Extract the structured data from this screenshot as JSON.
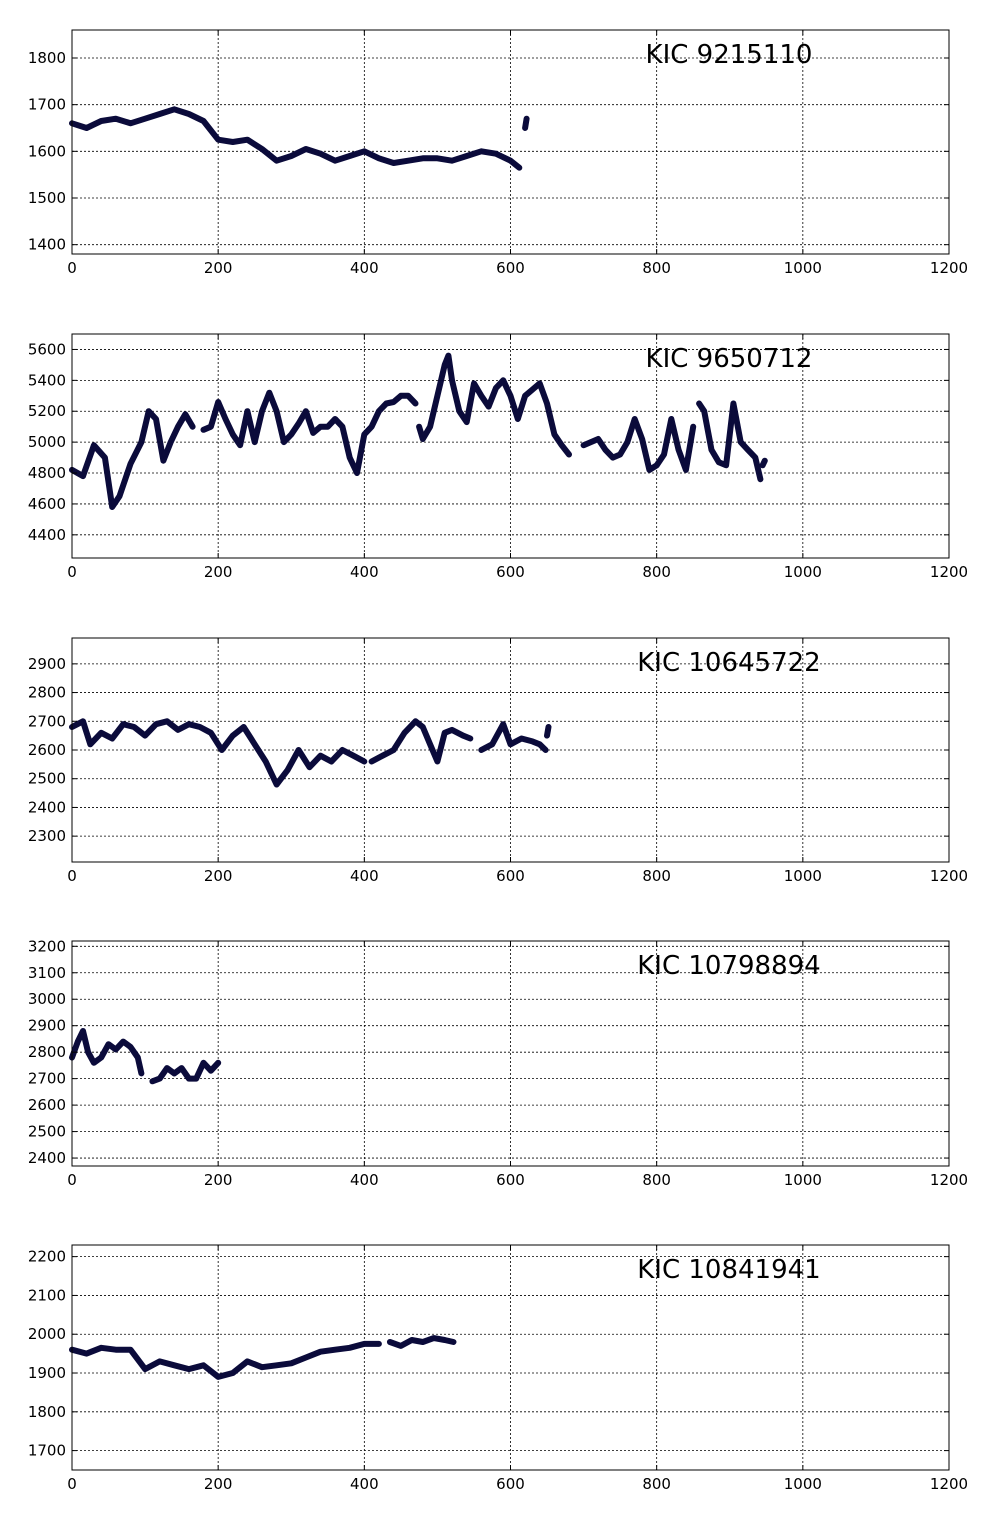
{
  "colors": {
    "series": "#0b0b3b",
    "background": "#ffffff",
    "axes": "#000000"
  },
  "chart_data": [
    {
      "type": "line",
      "title": "KIC 9215110",
      "xlim": [
        0,
        1200
      ],
      "ylim": [
        1380,
        1860
      ],
      "xticks": [
        0,
        200,
        400,
        600,
        800,
        1000,
        1200
      ],
      "yticks": [
        1400,
        1500,
        1600,
        1700,
        1800
      ],
      "grid": true,
      "segments": [
        {
          "x": [
            0,
            20,
            40,
            60,
            80,
            100,
            120,
            140,
            160,
            180,
            200,
            220,
            240,
            260,
            280,
            300,
            320,
            340,
            360,
            380,
            400,
            420,
            440,
            460,
            480,
            500,
            520,
            540,
            560,
            580,
            600,
            612
          ],
          "y": [
            1660,
            1650,
            1665,
            1670,
            1660,
            1670,
            1680,
            1690,
            1680,
            1665,
            1625,
            1620,
            1625,
            1605,
            1580,
            1590,
            1605,
            1595,
            1580,
            1590,
            1600,
            1585,
            1575,
            1580,
            1585,
            1585,
            1580,
            1590,
            1600,
            1595,
            1580,
            1565
          ]
        },
        {
          "x": [
            620,
            622
          ],
          "y": [
            1650,
            1670
          ]
        }
      ]
    },
    {
      "type": "line",
      "title": "KIC 9650712",
      "xlim": [
        0,
        1200
      ],
      "ylim": [
        4250,
        5700
      ],
      "xticks": [
        0,
        200,
        400,
        600,
        800,
        1000,
        1200
      ],
      "yticks": [
        4400,
        4600,
        4800,
        5000,
        5200,
        5400,
        5600
      ],
      "grid": true,
      "segments": [
        {
          "x": [
            0,
            15,
            30,
            45,
            55,
            65,
            80,
            95,
            105,
            115,
            125,
            135,
            145,
            155,
            165
          ],
          "y": [
            4820,
            4780,
            4980,
            4900,
            4580,
            4650,
            4860,
            5000,
            5200,
            5150,
            4880,
            5000,
            5100,
            5180,
            5100
          ]
        },
        {
          "x": [
            180,
            190,
            200,
            210,
            220,
            230,
            240,
            250,
            260,
            270,
            280,
            290,
            300,
            310,
            320,
            330,
            340,
            350,
            360,
            370,
            380,
            390,
            400,
            410,
            420,
            430,
            440,
            450,
            460,
            470
          ],
          "y": [
            5080,
            5100,
            5260,
            5150,
            5050,
            4980,
            5200,
            5000,
            5200,
            5320,
            5200,
            5000,
            5050,
            5120,
            5200,
            5060,
            5100,
            5100,
            5150,
            5100,
            4900,
            4800,
            5050,
            5100,
            5200,
            5250,
            5260,
            5300,
            5300,
            5250
          ]
        },
        {
          "x": [
            475,
            480,
            490,
            500,
            510,
            515,
            520,
            530,
            540,
            550,
            560,
            570,
            580,
            590,
            600,
            610,
            620,
            630,
            640,
            650,
            660,
            670,
            680
          ],
          "y": [
            5100,
            5020,
            5100,
            5300,
            5500,
            5560,
            5400,
            5200,
            5130,
            5380,
            5300,
            5230,
            5350,
            5400,
            5300,
            5150,
            5300,
            5340,
            5380,
            5250,
            5050,
            4980,
            4920
          ]
        },
        {
          "x": [
            700,
            720,
            730,
            740,
            750,
            760,
            770,
            780,
            790,
            800,
            810,
            820,
            830,
            840,
            850
          ],
          "y": [
            4980,
            5020,
            4950,
            4900,
            4920,
            5000,
            5150,
            5020,
            4820,
            4850,
            4920,
            5150,
            4950,
            4820,
            5100
          ]
        },
        {
          "x": [
            858,
            865,
            875,
            885,
            895,
            905,
            915,
            925,
            935,
            942
          ],
          "y": [
            5250,
            5200,
            4950,
            4870,
            4850,
            5250,
            5000,
            4950,
            4900,
            4760
          ]
        },
        {
          "x": [
            945,
            948
          ],
          "y": [
            4850,
            4880
          ]
        }
      ]
    },
    {
      "type": "line",
      "title": "KIC 10645722",
      "xlim": [
        0,
        1200
      ],
      "ylim": [
        2210,
        2990
      ],
      "xticks": [
        0,
        200,
        400,
        600,
        800,
        1000,
        1200
      ],
      "yticks": [
        2300,
        2400,
        2500,
        2600,
        2700,
        2800,
        2900
      ],
      "grid": true,
      "segments": [
        {
          "x": [
            0,
            15,
            25,
            40,
            55,
            70,
            85,
            100,
            115,
            130,
            145,
            160,
            175,
            190,
            205,
            220,
            235,
            250,
            265,
            280,
            295,
            310,
            325,
            340,
            355,
            370,
            385,
            400
          ],
          "y": [
            2680,
            2700,
            2620,
            2660,
            2640,
            2690,
            2680,
            2650,
            2690,
            2700,
            2670,
            2690,
            2680,
            2660,
            2600,
            2650,
            2680,
            2620,
            2560,
            2480,
            2530,
            2600,
            2540,
            2580,
            2560,
            2600,
            2580,
            2560
          ]
        },
        {
          "x": [
            410,
            425,
            440,
            455,
            470,
            480,
            490,
            500,
            510,
            520,
            535,
            545
          ],
          "y": [
            2560,
            2580,
            2600,
            2660,
            2700,
            2680,
            2620,
            2560,
            2660,
            2670,
            2650,
            2640
          ]
        },
        {
          "x": [
            560,
            575,
            590,
            600,
            615,
            630,
            640,
            648
          ],
          "y": [
            2600,
            2620,
            2690,
            2620,
            2640,
            2630,
            2620,
            2600
          ]
        },
        {
          "x": [
            650,
            652
          ],
          "y": [
            2650,
            2680
          ]
        }
      ]
    },
    {
      "type": "line",
      "title": "KIC 10798894",
      "xlim": [
        0,
        1200
      ],
      "ylim": [
        2370,
        3220
      ],
      "xticks": [
        0,
        200,
        400,
        600,
        800,
        1000,
        1200
      ],
      "yticks": [
        2400,
        2500,
        2600,
        2700,
        2800,
        2900,
        3000,
        3100,
        3200
      ],
      "grid": true,
      "segments": [
        {
          "x": [
            0,
            8,
            15,
            22,
            30,
            40,
            50,
            60,
            70,
            80,
            90,
            95
          ],
          "y": [
            2780,
            2840,
            2880,
            2800,
            2760,
            2780,
            2830,
            2810,
            2840,
            2820,
            2780,
            2720
          ]
        },
        {
          "x": [
            110,
            120,
            130,
            140,
            150,
            160,
            170,
            180,
            190,
            200
          ],
          "y": [
            2690,
            2700,
            2740,
            2720,
            2740,
            2700,
            2700,
            2760,
            2730,
            2760
          ]
        }
      ]
    },
    {
      "type": "line",
      "title": "KIC 10841941",
      "xlim": [
        0,
        1200
      ],
      "ylim": [
        1650,
        2230
      ],
      "xticks": [
        0,
        200,
        400,
        600,
        800,
        1000,
        1200
      ],
      "yticks": [
        1700,
        1800,
        1900,
        2000,
        2100,
        2200
      ],
      "grid": true,
      "segments": [
        {
          "x": [
            0,
            20,
            40,
            60,
            80,
            100,
            120,
            140,
            160,
            180,
            200,
            220,
            240,
            260,
            280,
            300,
            320,
            340,
            360,
            380,
            400,
            420
          ],
          "y": [
            1960,
            1950,
            1965,
            1960,
            1960,
            1910,
            1930,
            1920,
            1910,
            1920,
            1890,
            1900,
            1930,
            1915,
            1920,
            1925,
            1940,
            1955,
            1960,
            1965,
            1975,
            1975
          ]
        },
        {
          "x": [
            435,
            450,
            465,
            480,
            495,
            510,
            522
          ],
          "y": [
            1980,
            1970,
            1985,
            1980,
            1990,
            1985,
            1980
          ]
        }
      ]
    }
  ]
}
